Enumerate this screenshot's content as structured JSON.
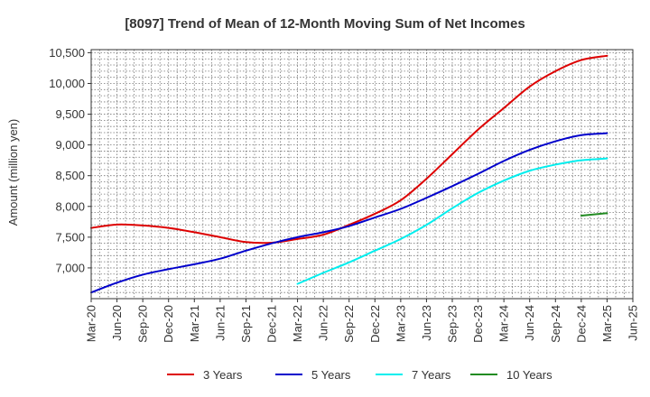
{
  "chart_data": {
    "type": "line",
    "title": "[8097]  Trend of Mean of 12-Month Moving Sum of Net Incomes",
    "xlabel": "",
    "ylabel": "Amount (million yen)",
    "ylim": [
      6500,
      10550
    ],
    "yticks": [
      7000,
      7500,
      8000,
      8500,
      9000,
      9500,
      10000,
      10500
    ],
    "ytick_labels": [
      "7,000",
      "7,500",
      "8,000",
      "8,500",
      "9,000",
      "9,500",
      "10,000",
      "10,500"
    ],
    "xticks": [
      "Mar-20",
      "Jun-20",
      "Sep-20",
      "Dec-20",
      "Mar-21",
      "Jun-21",
      "Sep-21",
      "Dec-21",
      "Mar-22",
      "Jun-22",
      "Sep-22",
      "Dec-22",
      "Mar-23",
      "Jun-23",
      "Sep-23",
      "Dec-23",
      "Mar-24",
      "Jun-24",
      "Sep-24",
      "Dec-24",
      "Mar-25",
      "Jun-25"
    ],
    "grid": true,
    "legend_position": "bottom",
    "series": [
      {
        "name": "3 Years",
        "color": "#dd0000",
        "points": [
          [
            "Mar-20",
            7650
          ],
          [
            "Jun-20",
            7705
          ],
          [
            "Sep-20",
            7690
          ],
          [
            "Dec-20",
            7650
          ],
          [
            "Mar-21",
            7580
          ],
          [
            "Jun-21",
            7500
          ],
          [
            "Sep-21",
            7420
          ],
          [
            "Dec-21",
            7410
          ],
          [
            "Mar-22",
            7470
          ],
          [
            "Jun-22",
            7540
          ],
          [
            "Sep-22",
            7700
          ],
          [
            "Dec-22",
            7880
          ],
          [
            "Mar-23",
            8100
          ],
          [
            "Jun-23",
            8450
          ],
          [
            "Sep-23",
            8850
          ],
          [
            "Dec-23",
            9250
          ],
          [
            "Mar-24",
            9600
          ],
          [
            "Jun-24",
            9950
          ],
          [
            "Sep-24",
            10200
          ],
          [
            "Dec-24",
            10380
          ],
          [
            "Mar-25",
            10450
          ]
        ]
      },
      {
        "name": "5 Years",
        "color": "#0000cc",
        "points": [
          [
            "Mar-20",
            6600
          ],
          [
            "Jun-20",
            6760
          ],
          [
            "Sep-20",
            6890
          ],
          [
            "Dec-20",
            6980
          ],
          [
            "Mar-21",
            7060
          ],
          [
            "Jun-21",
            7150
          ],
          [
            "Sep-21",
            7280
          ],
          [
            "Dec-21",
            7400
          ],
          [
            "Mar-22",
            7500
          ],
          [
            "Jun-22",
            7580
          ],
          [
            "Sep-22",
            7680
          ],
          [
            "Dec-22",
            7820
          ],
          [
            "Mar-23",
            7960
          ],
          [
            "Jun-23",
            8140
          ],
          [
            "Sep-23",
            8330
          ],
          [
            "Dec-23",
            8530
          ],
          [
            "Mar-24",
            8740
          ],
          [
            "Jun-24",
            8920
          ],
          [
            "Sep-24",
            9060
          ],
          [
            "Dec-24",
            9160
          ],
          [
            "Mar-25",
            9190
          ]
        ]
      },
      {
        "name": "7 Years",
        "color": "#00eeee",
        "points": [
          [
            "Mar-22",
            6740
          ],
          [
            "Jun-22",
            6920
          ],
          [
            "Sep-22",
            7090
          ],
          [
            "Dec-22",
            7280
          ],
          [
            "Mar-23",
            7470
          ],
          [
            "Jun-23",
            7700
          ],
          [
            "Sep-23",
            7970
          ],
          [
            "Dec-23",
            8220
          ],
          [
            "Mar-24",
            8420
          ],
          [
            "Jun-24",
            8580
          ],
          [
            "Sep-24",
            8680
          ],
          [
            "Dec-24",
            8750
          ],
          [
            "Mar-25",
            8780
          ]
        ]
      },
      {
        "name": "10 Years",
        "color": "#228b22",
        "points": [
          [
            "Dec-24",
            7850
          ],
          [
            "Mar-25",
            7890
          ]
        ]
      }
    ]
  }
}
